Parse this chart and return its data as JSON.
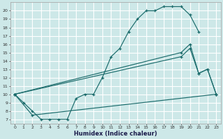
{
  "xlabel": "Humidex (Indice chaleur)",
  "bg_color": "#cde8e8",
  "line_color": "#1a6b6b",
  "grid_color": "#ffffff",
  "xlim": [
    -0.5,
    23.5
  ],
  "ylim": [
    6.5,
    21.0
  ],
  "xticks": [
    0,
    1,
    2,
    3,
    4,
    5,
    6,
    7,
    8,
    9,
    10,
    11,
    12,
    13,
    14,
    15,
    16,
    17,
    18,
    19,
    20,
    21,
    22,
    23
  ],
  "yticks": [
    7,
    8,
    9,
    10,
    11,
    12,
    13,
    14,
    15,
    16,
    17,
    18,
    19,
    20
  ],
  "curve1_x": [
    0,
    1,
    2,
    3,
    4,
    5,
    6,
    7,
    8,
    9,
    10,
    11,
    12,
    13,
    14,
    15,
    16,
    17,
    18,
    19,
    20,
    21
  ],
  "curve1_y": [
    10,
    9,
    8,
    7,
    7,
    7,
    7,
    9.5,
    10,
    10,
    12,
    14.5,
    15.5,
    17.5,
    19,
    20,
    20,
    20.5,
    20.5,
    20.5,
    19.5,
    17.5
  ],
  "curve2_x": [
    0,
    19,
    20,
    21,
    22,
    23
  ],
  "curve2_y": [
    10,
    15,
    16,
    12.5,
    13,
    10
  ],
  "curve3_x": [
    0,
    19,
    20,
    21,
    22,
    23
  ],
  "curve3_y": [
    10,
    14.5,
    15.5,
    12.5,
    13,
    10
  ],
  "curve4_x": [
    0,
    2,
    23
  ],
  "curve4_y": [
    10,
    7.5,
    10
  ]
}
